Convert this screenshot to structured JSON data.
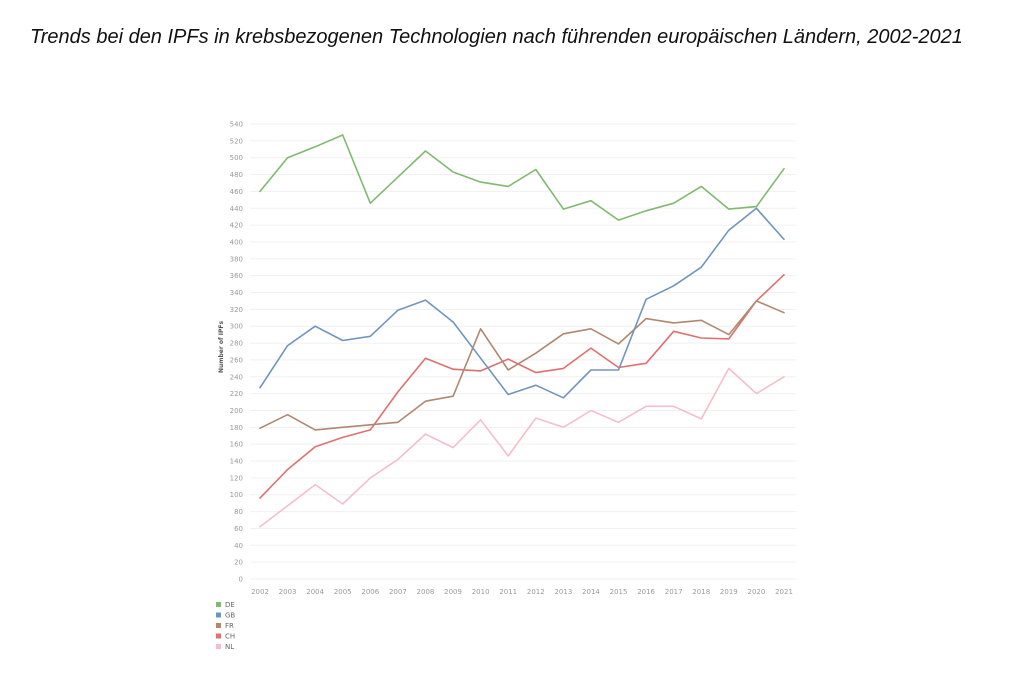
{
  "chart_data": {
    "type": "line",
    "title": "Trends bei den IPFs in krebsbezogenen Technologien nach führenden europäischen Ländern, 2002-2021",
    "xlabel": "",
    "ylabel": "Number of IPFs",
    "ylim": [
      0,
      540
    ],
    "yticks": [
      0,
      20,
      40,
      60,
      80,
      100,
      120,
      140,
      160,
      180,
      200,
      220,
      240,
      260,
      280,
      300,
      320,
      340,
      360,
      380,
      400,
      420,
      440,
      460,
      480,
      500,
      520,
      540
    ],
    "categories": [
      "2002",
      "2003",
      "2004",
      "2005",
      "2006",
      "2007",
      "2008",
      "2009",
      "2010",
      "2011",
      "2012",
      "2013",
      "2014",
      "2015",
      "2016",
      "2017",
      "2018",
      "2019",
      "2020",
      "2021"
    ],
    "grid": true,
    "legend_position": "bottom-left",
    "series": [
      {
        "name": "DE",
        "color": "#7fba6f",
        "values": [
          460,
          500,
          513,
          527,
          446,
          477,
          508,
          483,
          471,
          466,
          486,
          439,
          449,
          426,
          437,
          446,
          466,
          439,
          442,
          487
        ]
      },
      {
        "name": "GB",
        "color": "#7095bd",
        "values": [
          227,
          277,
          300,
          283,
          288,
          319,
          331,
          305,
          262,
          219,
          230,
          215,
          248,
          248,
          332,
          348,
          370,
          414,
          440,
          403
        ]
      },
      {
        "name": "FR",
        "color": "#b08870",
        "values": [
          179,
          195,
          177,
          180,
          183,
          186,
          211,
          217,
          297,
          248,
          268,
          291,
          297,
          279,
          309,
          304,
          307,
          290,
          330,
          316
        ]
      },
      {
        "name": "CH",
        "color": "#e07070",
        "values": [
          96,
          130,
          157,
          168,
          177,
          222,
          262,
          249,
          247,
          261,
          245,
          250,
          274,
          251,
          256,
          294,
          286,
          285,
          330,
          361
        ]
      },
      {
        "name": "NL",
        "color": "#f4bfca",
        "values": [
          62,
          87,
          112,
          89,
          120,
          142,
          172,
          156,
          189,
          146,
          191,
          180,
          200,
          186,
          205,
          205,
          190,
          250,
          220,
          240
        ]
      }
    ]
  }
}
